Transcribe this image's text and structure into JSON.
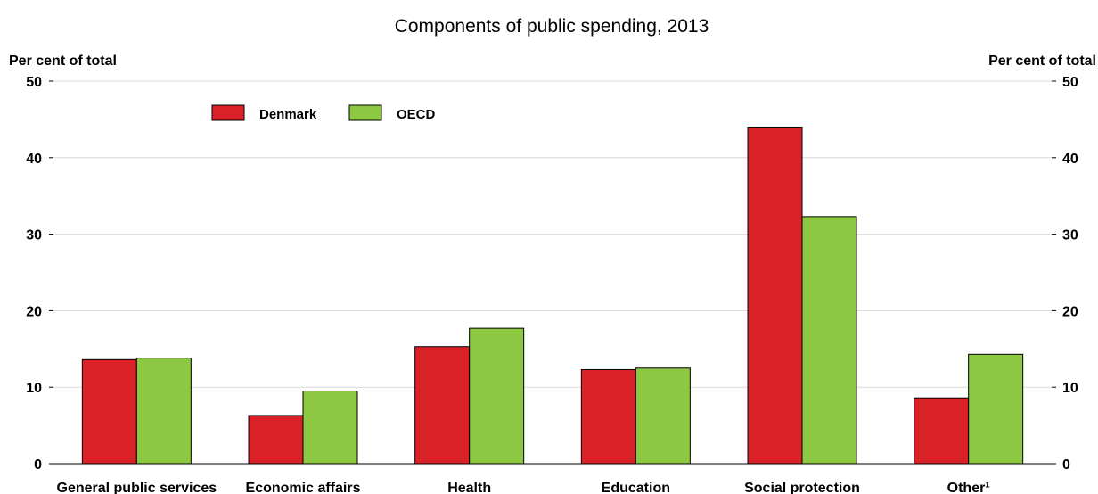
{
  "chart_data": {
    "type": "bar",
    "title": "Components of public spending, 2013",
    "ylabel_left": "Per cent of total",
    "ylabel_right": "Per cent of total",
    "ylim": [
      0,
      50
    ],
    "yticks": [
      0,
      10,
      20,
      30,
      40,
      50
    ],
    "grid": true,
    "legend_position": "top-left",
    "categories": [
      "General public services",
      "Economic affairs",
      "Health",
      "Education",
      "Social protection",
      "Other¹"
    ],
    "series": [
      {
        "name": "Denmark",
        "color": "#da2128",
        "values": [
          13.6,
          6.3,
          15.3,
          12.3,
          44.0,
          8.6
        ]
      },
      {
        "name": "OECD",
        "color": "#8cc841",
        "values": [
          13.8,
          9.5,
          17.7,
          12.5,
          32.3,
          14.3
        ]
      }
    ]
  }
}
